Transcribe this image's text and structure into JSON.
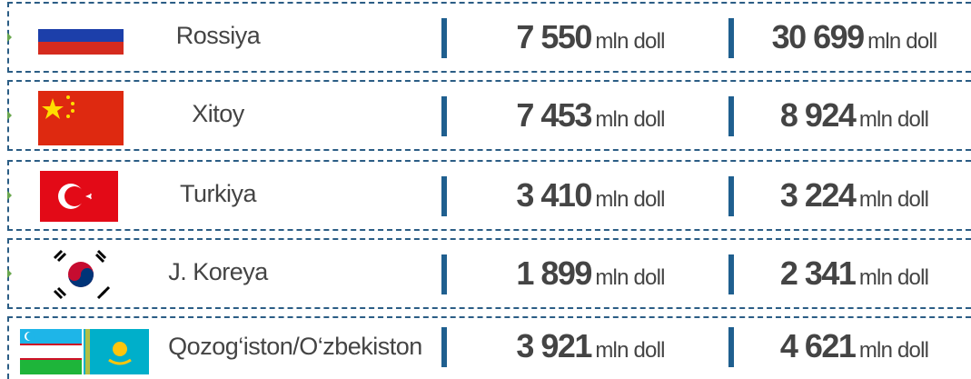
{
  "rows": [
    {
      "country": "Rossiya",
      "col1": {
        "number": "7 550",
        "unit": "mln doll"
      },
      "col2": {
        "number": "30 699",
        "unit": "mln doll"
      }
    },
    {
      "country": "Xitoy",
      "col1": {
        "number": "7 453",
        "unit": "mln doll"
      },
      "col2": {
        "number": "8 924",
        "unit": "mln doll"
      }
    },
    {
      "country": "Turkiya",
      "col1": {
        "number": "3 410",
        "unit": "mln doll"
      },
      "col2": {
        "number": "3 224",
        "unit": "mln doll"
      }
    },
    {
      "country": "J. Koreya",
      "col1": {
        "number": "1 899",
        "unit": "mln doll"
      },
      "col2": {
        "number": "2 341",
        "unit": "mln doll"
      }
    },
    {
      "country": "Qozog‘iston/O‘zbekiston",
      "col1": {
        "number": "3 921",
        "unit": "mln doll"
      },
      "col2": {
        "number": "4 621",
        "unit": "mln doll"
      }
    }
  ]
}
